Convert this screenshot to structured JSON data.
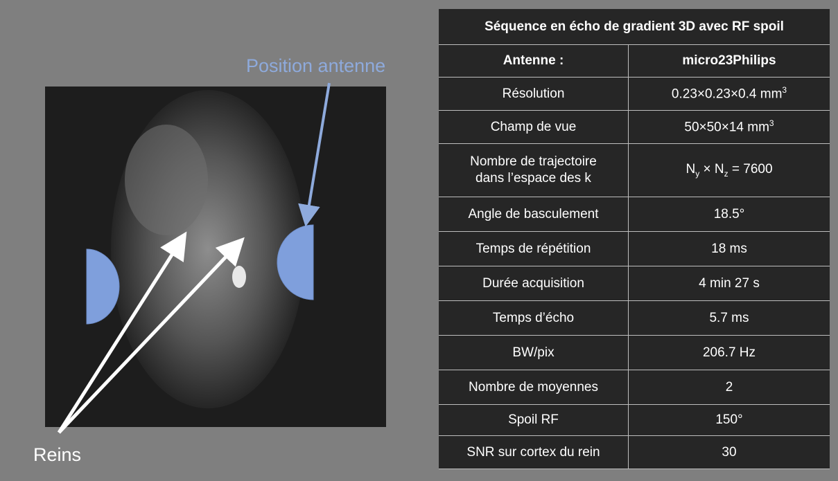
{
  "labels": {
    "antenna": "Position antenne",
    "kidneys": "Reins"
  },
  "table": {
    "title": "Séquence en écho de gradient 3D avec RF spoil",
    "header": [
      "Antenne :",
      "micro23Philips"
    ],
    "rows": [
      [
        "Résolution",
        [
          {
            "text": "0.23×0.23×0.4 mm"
          },
          {
            "sup": "3"
          }
        ]
      ],
      [
        "Champ de vue",
        [
          {
            "text": "50×50×14 mm"
          },
          {
            "sup": "3"
          }
        ]
      ],
      [
        "Nombre de trajectoire\ndans l’espace des k",
        [
          {
            "text": "N"
          },
          {
            "sub": "y"
          },
          {
            "text": " × N"
          },
          {
            "sub": "z"
          },
          {
            "text": " = 7600"
          }
        ]
      ],
      [
        "Angle de basculement",
        "18.5°"
      ],
      [
        "Temps de répétition",
        "18 ms"
      ],
      [
        "Durée acquisition",
        "4 min 27 s"
      ],
      [
        "Temps d’écho",
        "5.7 ms"
      ],
      [
        "BW/pix",
        "206.7 Hz"
      ],
      [
        "Nombre de moyennes",
        "2"
      ],
      [
        "Spoil RF",
        "150°"
      ],
      [
        "SNR sur cortex du rein",
        "30"
      ]
    ]
  }
}
